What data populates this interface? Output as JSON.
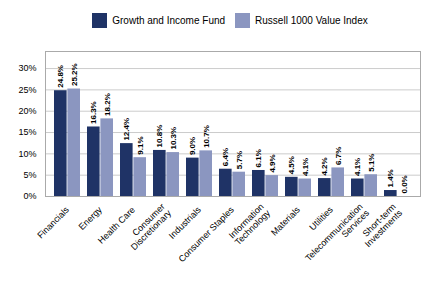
{
  "chart_data": {
    "type": "bar",
    "categories": [
      "Financials",
      "Energy",
      "Health Care",
      "Consumer\nDiscretionary",
      "Industrials",
      "Consumer Staples",
      "Information\nTechnology",
      "Materials",
      "Utilities",
      "Telecommunication\nServices",
      "Short-term\nInvestments"
    ],
    "series": [
      {
        "name": "Growth and Income Fund",
        "color": "#1f3366",
        "values": [
          24.8,
          16.3,
          12.4,
          10.8,
          9.0,
          6.4,
          6.1,
          4.5,
          4.2,
          4.1,
          1.4
        ],
        "value_labels": [
          "24.8%",
          "16.3%",
          "12.4%",
          "10.8%",
          "9.0%",
          "6.4%",
          "6.1%",
          "4.5%",
          "4.2%",
          "4.1%",
          "1.4%"
        ]
      },
      {
        "name": "Russell 1000 Value Index",
        "color": "#8b96c0",
        "values": [
          25.2,
          18.2,
          9.1,
          10.3,
          10.7,
          5.7,
          4.9,
          4.1,
          6.7,
          5.1,
          0.0
        ],
        "value_labels": [
          "25.2%",
          "18.2%",
          "9.1%",
          "10.3%",
          "10.7%",
          "5.7%",
          "4.9%",
          "4.1%",
          "6.7%",
          "5.1%",
          "0.0%"
        ]
      }
    ],
    "ylim": [
      0,
      34
    ],
    "yticks": [
      {
        "value": 0,
        "label": "0%"
      },
      {
        "value": 5,
        "label": "5%"
      },
      {
        "value": 10,
        "label": "10%"
      },
      {
        "value": 15,
        "label": "15%"
      },
      {
        "value": 20,
        "label": "20%"
      },
      {
        "value": 25,
        "label": "25%"
      },
      {
        "value": 30,
        "label": "30%"
      }
    ],
    "grid": true,
    "legend": "top",
    "data_labels": true
  }
}
